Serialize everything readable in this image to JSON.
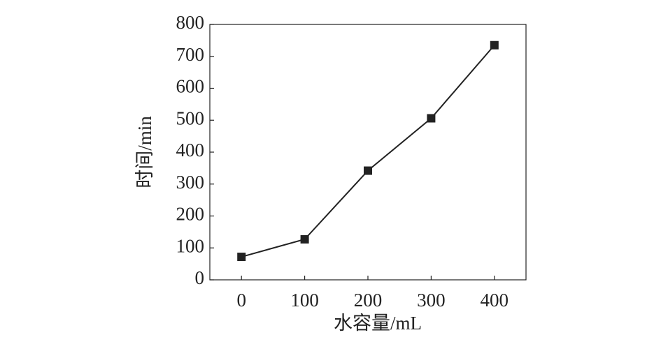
{
  "chart_data": {
    "type": "line",
    "x_label": "水容量/mL",
    "y_label": "时间/min",
    "x": [
      0,
      100,
      200,
      300,
      400
    ],
    "series": [
      {
        "color": "#222222",
        "values": [
          72,
          127,
          342,
          506,
          735
        ]
      }
    ],
    "xlim": [
      -50,
      450
    ],
    "xticks": [
      0,
      100,
      200,
      300,
      400
    ],
    "ylim": [
      0,
      800
    ],
    "yticks": [
      0,
      100,
      200,
      300,
      400,
      500,
      600,
      700,
      800
    ]
  }
}
